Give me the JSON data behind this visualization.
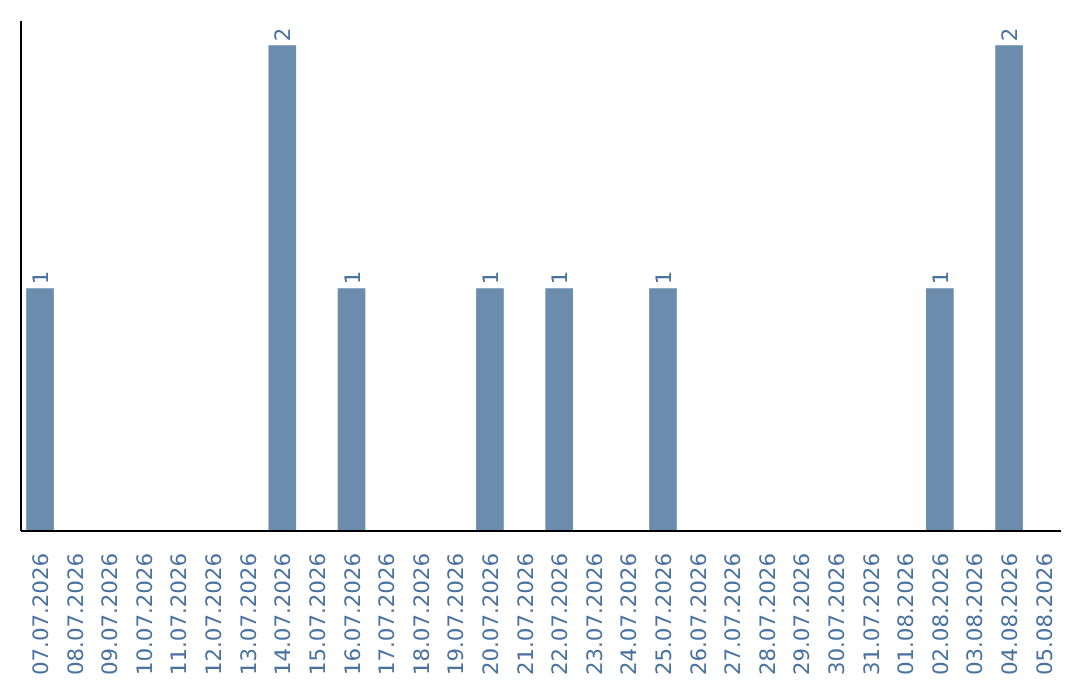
{
  "chart_data": {
    "type": "bar",
    "categories": [
      "07.07.2026",
      "08.07.2026",
      "09.07.2026",
      "10.07.2026",
      "11.07.2026",
      "12.07.2026",
      "13.07.2026",
      "14.07.2026",
      "15.07.2026",
      "16.07.2026",
      "17.07.2026",
      "18.07.2026",
      "19.07.2026",
      "20.07.2026",
      "21.07.2026",
      "22.07.2026",
      "23.07.2026",
      "24.07.2026",
      "25.07.2026",
      "26.07.2026",
      "27.07.2026",
      "28.07.2026",
      "29.07.2026",
      "30.07.2026",
      "31.07.2026",
      "01.08.2026",
      "02.08.2026",
      "03.08.2026",
      "04.08.2026",
      "05.08.2026"
    ],
    "values": [
      1,
      0,
      0,
      0,
      0,
      0,
      0,
      2,
      0,
      1,
      0,
      0,
      0,
      1,
      0,
      1,
      0,
      0,
      1,
      0,
      0,
      0,
      0,
      0,
      0,
      0,
      1,
      0,
      2,
      0
    ],
    "value_labels": [
      "1",
      null,
      null,
      null,
      null,
      null,
      null,
      "2",
      null,
      "1",
      null,
      null,
      null,
      "1",
      null,
      "1",
      null,
      null,
      "1",
      null,
      null,
      null,
      null,
      null,
      null,
      null,
      "1",
      null,
      "2",
      null
    ],
    "color": "#6b8cac"
  }
}
